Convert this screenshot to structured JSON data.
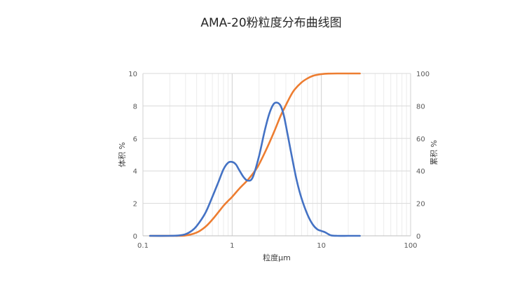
{
  "chart_data": {
    "type": "line",
    "title": "AMA-20粉粒度分布曲线图",
    "xlabel": "粒度μm",
    "ylabel_left": "体积 %",
    "ylabel_right": "累积 %",
    "x_scale": "log",
    "xlim": [
      0.1,
      100
    ],
    "ylim_left": [
      0,
      10
    ],
    "ylim_right": [
      0,
      100
    ],
    "grid": true,
    "legend": "none",
    "x_ticks": [
      "0.1",
      "1",
      "10",
      "100"
    ],
    "y_ticks_left": [
      "0",
      "2",
      "4",
      "6",
      "8",
      "10"
    ],
    "y_ticks_right": [
      "0",
      "20",
      "40",
      "60",
      "80",
      "100"
    ],
    "series": [
      {
        "axis": "left",
        "color": "#4472C4",
        "x": [
          0.12,
          0.2,
          0.25,
          0.3,
          0.35,
          0.4,
          0.5,
          0.6,
          0.7,
          0.8,
          0.9,
          1.0,
          1.1,
          1.2,
          1.35,
          1.5,
          1.7,
          2.0,
          2.3,
          2.6,
          2.9,
          3.2,
          3.5,
          3.8,
          4.2,
          4.7,
          5.3,
          6.0,
          7.0,
          8.0,
          9.0,
          10.0,
          11.0,
          12.0,
          13.0,
          15.0,
          20.0,
          27.0
        ],
        "y": [
          0,
          0,
          0.02,
          0.1,
          0.3,
          0.6,
          1.4,
          2.4,
          3.3,
          4.1,
          4.5,
          4.55,
          4.4,
          4.05,
          3.6,
          3.4,
          3.6,
          4.9,
          6.4,
          7.5,
          8.1,
          8.2,
          8.0,
          7.4,
          6.2,
          4.8,
          3.4,
          2.3,
          1.3,
          0.7,
          0.4,
          0.3,
          0.22,
          0.1,
          0.02,
          0,
          0,
          0
        ]
      },
      {
        "axis": "right",
        "color": "#ED7D31",
        "x": [
          0.12,
          0.2,
          0.3,
          0.4,
          0.5,
          0.6,
          0.7,
          0.8,
          0.9,
          1.0,
          1.2,
          1.5,
          1.8,
          2.0,
          2.5,
          3.0,
          3.5,
          4.0,
          4.5,
          5.0,
          6.0,
          7.0,
          8.0,
          9.0,
          10.0,
          12.0,
          15.0,
          20.0,
          27.0
        ],
        "y": [
          0,
          0,
          0.2,
          2,
          5.5,
          10,
          14.5,
          18.5,
          21.5,
          24,
          29,
          34.5,
          40,
          44,
          55,
          65,
          74,
          80.5,
          86,
          90,
          94.5,
          97,
          98.5,
          99.2,
          99.6,
          99.9,
          100,
          100,
          100
        ]
      }
    ]
  }
}
